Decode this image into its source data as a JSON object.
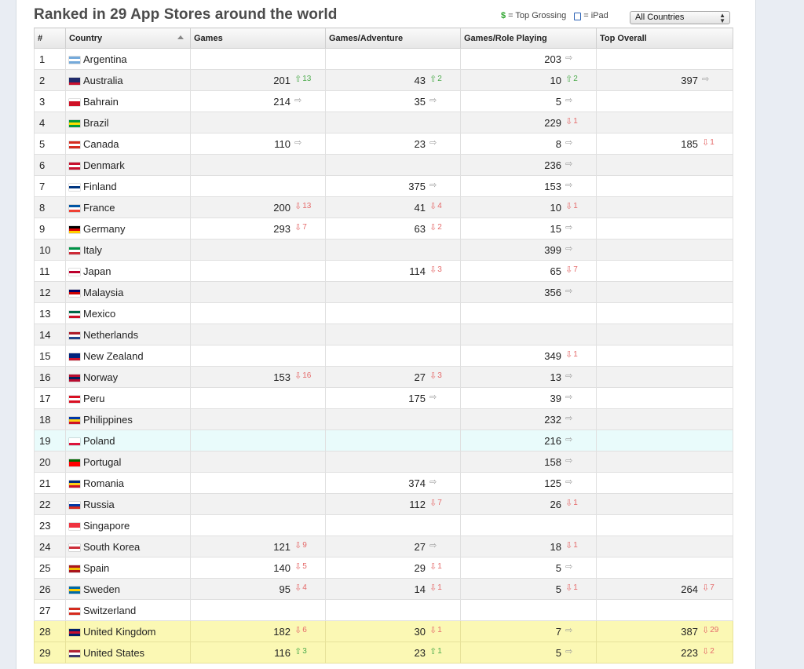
{
  "title": "Ranked in 29 App Stores around the world",
  "legend": {
    "grossing_symbol": "$",
    "grossing_label": "= Top Grossing",
    "ipad_label": "= iPad"
  },
  "filter": {
    "selected": "All Countries"
  },
  "columns": [
    "#",
    "Country",
    "Games",
    "Games/Adventure",
    "Games/Role Playing",
    "Top Overall"
  ],
  "colors": {
    "up": "#4cab4c",
    "down": "#e56b6b",
    "same": "#9a9a9a",
    "highlight_yellow": "#fbf8b4",
    "highlight_blue": "#e9fbfb"
  },
  "rows": [
    {
      "num": "1",
      "country": "Argentina",
      "flag": [
        "#75aadb",
        "#ffffff",
        "#75aadb"
      ],
      "ranks": [
        null,
        null,
        {
          "v": "203",
          "d": "same",
          "c": ""
        },
        null
      ]
    },
    {
      "num": "2",
      "country": "Australia",
      "flag": [
        "#1f2a6b",
        "#1f2a6b",
        "#c8102e"
      ],
      "ranks": [
        {
          "v": "201",
          "d": "up",
          "c": "13"
        },
        {
          "v": "43",
          "d": "up",
          "c": "2"
        },
        {
          "v": "10",
          "d": "up",
          "c": "2"
        },
        {
          "v": "397",
          "d": "same",
          "c": ""
        }
      ]
    },
    {
      "num": "3",
      "country": "Bahrain",
      "flag": [
        "#ffffff",
        "#ce1126",
        "#ce1126"
      ],
      "ranks": [
        {
          "v": "214",
          "d": "same",
          "c": ""
        },
        {
          "v": "35",
          "d": "same",
          "c": ""
        },
        {
          "v": "5",
          "d": "same",
          "c": ""
        },
        null
      ]
    },
    {
      "num": "4",
      "country": "Brazil",
      "flag": [
        "#009b3a",
        "#fedf00",
        "#009b3a"
      ],
      "ranks": [
        null,
        null,
        {
          "v": "229",
          "d": "down",
          "c": "1"
        },
        null
      ]
    },
    {
      "num": "5",
      "country": "Canada",
      "flag": [
        "#d52b1e",
        "#ffffff",
        "#d52b1e"
      ],
      "ranks": [
        {
          "v": "110",
          "d": "same",
          "c": ""
        },
        {
          "v": "23",
          "d": "same",
          "c": ""
        },
        {
          "v": "8",
          "d": "same",
          "c": ""
        },
        {
          "v": "185",
          "d": "down",
          "c": "1"
        }
      ]
    },
    {
      "num": "6",
      "country": "Denmark",
      "flag": [
        "#c8102e",
        "#ffffff",
        "#c8102e"
      ],
      "ranks": [
        null,
        null,
        {
          "v": "236",
          "d": "same",
          "c": ""
        },
        null
      ]
    },
    {
      "num": "7",
      "country": "Finland",
      "flag": [
        "#ffffff",
        "#003580",
        "#ffffff"
      ],
      "ranks": [
        null,
        {
          "v": "375",
          "d": "same",
          "c": ""
        },
        {
          "v": "153",
          "d": "same",
          "c": ""
        },
        null
      ]
    },
    {
      "num": "8",
      "country": "France",
      "flag": [
        "#0055a4",
        "#ffffff",
        "#ef4135"
      ],
      "ranks": [
        {
          "v": "200",
          "d": "down",
          "c": "13"
        },
        {
          "v": "41",
          "d": "down",
          "c": "4"
        },
        {
          "v": "10",
          "d": "down",
          "c": "1"
        },
        null
      ]
    },
    {
      "num": "9",
      "country": "Germany",
      "flag": [
        "#000000",
        "#dd0000",
        "#ffce00"
      ],
      "ranks": [
        {
          "v": "293",
          "d": "down",
          "c": "7"
        },
        {
          "v": "63",
          "d": "down",
          "c": "2"
        },
        {
          "v": "15",
          "d": "same",
          "c": ""
        },
        null
      ]
    },
    {
      "num": "10",
      "country": "Italy",
      "flag": [
        "#009246",
        "#ffffff",
        "#ce2b37"
      ],
      "ranks": [
        null,
        null,
        {
          "v": "399",
          "d": "same",
          "c": ""
        },
        null
      ]
    },
    {
      "num": "11",
      "country": "Japan",
      "flag": [
        "#ffffff",
        "#bc002d",
        "#ffffff"
      ],
      "ranks": [
        null,
        {
          "v": "114",
          "d": "down",
          "c": "3"
        },
        {
          "v": "65",
          "d": "down",
          "c": "7"
        },
        null
      ]
    },
    {
      "num": "12",
      "country": "Malaysia",
      "flag": [
        "#010066",
        "#cc0001",
        "#ffffff"
      ],
      "ranks": [
        null,
        null,
        {
          "v": "356",
          "d": "same",
          "c": ""
        },
        null
      ]
    },
    {
      "num": "13",
      "country": "Mexico",
      "flag": [
        "#006847",
        "#ffffff",
        "#ce1126"
      ],
      "ranks": [
        null,
        null,
        null,
        null
      ]
    },
    {
      "num": "14",
      "country": "Netherlands",
      "flag": [
        "#ae1c28",
        "#ffffff",
        "#21468b"
      ],
      "ranks": [
        null,
        null,
        null,
        null
      ]
    },
    {
      "num": "15",
      "country": "New Zealand",
      "flag": [
        "#00247d",
        "#00247d",
        "#cc142b"
      ],
      "ranks": [
        null,
        null,
        {
          "v": "349",
          "d": "down",
          "c": "1"
        },
        null
      ]
    },
    {
      "num": "16",
      "country": "Norway",
      "flag": [
        "#ba0c2f",
        "#00205b",
        "#ba0c2f"
      ],
      "ranks": [
        {
          "v": "153",
          "d": "down",
          "c": "16"
        },
        {
          "v": "27",
          "d": "down",
          "c": "3"
        },
        {
          "v": "13",
          "d": "same",
          "c": ""
        },
        null
      ]
    },
    {
      "num": "17",
      "country": "Peru",
      "flag": [
        "#d91023",
        "#ffffff",
        "#d91023"
      ],
      "ranks": [
        null,
        {
          "v": "175",
          "d": "same",
          "c": ""
        },
        {
          "v": "39",
          "d": "same",
          "c": ""
        },
        null
      ]
    },
    {
      "num": "18",
      "country": "Philippines",
      "flag": [
        "#0038a8",
        "#fcd116",
        "#ce1126"
      ],
      "ranks": [
        null,
        null,
        {
          "v": "232",
          "d": "same",
          "c": ""
        },
        null
      ]
    },
    {
      "num": "19",
      "country": "Poland",
      "flag": [
        "#ffffff",
        "#ffffff",
        "#dc143c"
      ],
      "ranks": [
        null,
        null,
        {
          "v": "216",
          "d": "same",
          "c": ""
        },
        null
      ]
    },
    {
      "num": "20",
      "country": "Portugal",
      "flag": [
        "#006600",
        "#ff0000",
        "#ff0000"
      ],
      "ranks": [
        null,
        null,
        {
          "v": "158",
          "d": "same",
          "c": ""
        },
        null
      ]
    },
    {
      "num": "21",
      "country": "Romania",
      "flag": [
        "#002b7f",
        "#fcd116",
        "#ce1126"
      ],
      "ranks": [
        null,
        {
          "v": "374",
          "d": "same",
          "c": ""
        },
        {
          "v": "125",
          "d": "same",
          "c": ""
        },
        null
      ]
    },
    {
      "num": "22",
      "country": "Russia",
      "flag": [
        "#ffffff",
        "#0039a6",
        "#d52b1e"
      ],
      "ranks": [
        null,
        {
          "v": "112",
          "d": "down",
          "c": "7"
        },
        {
          "v": "26",
          "d": "down",
          "c": "1"
        },
        null
      ]
    },
    {
      "num": "23",
      "country": "Singapore",
      "flag": [
        "#ef3340",
        "#ef3340",
        "#ffffff"
      ],
      "ranks": [
        null,
        null,
        null,
        null
      ]
    },
    {
      "num": "24",
      "country": "South Korea",
      "flag": [
        "#ffffff",
        "#cd2e3a",
        "#ffffff"
      ],
      "ranks": [
        {
          "v": "121",
          "d": "down",
          "c": "9"
        },
        {
          "v": "27",
          "d": "same",
          "c": ""
        },
        {
          "v": "18",
          "d": "down",
          "c": "1"
        },
        null
      ]
    },
    {
      "num": "25",
      "country": "Spain",
      "flag": [
        "#aa151b",
        "#f1bf00",
        "#aa151b"
      ],
      "ranks": [
        {
          "v": "140",
          "d": "down",
          "c": "5"
        },
        {
          "v": "29",
          "d": "down",
          "c": "1"
        },
        {
          "v": "5",
          "d": "same",
          "c": ""
        },
        null
      ]
    },
    {
      "num": "26",
      "country": "Sweden",
      "flag": [
        "#006aa7",
        "#fecc00",
        "#006aa7"
      ],
      "ranks": [
        {
          "v": "95",
          "d": "down",
          "c": "4"
        },
        {
          "v": "14",
          "d": "down",
          "c": "1"
        },
        {
          "v": "5",
          "d": "down",
          "c": "1"
        },
        {
          "v": "264",
          "d": "down",
          "c": "7"
        }
      ]
    },
    {
      "num": "27",
      "country": "Switzerland",
      "flag": [
        "#d52b1e",
        "#ffffff",
        "#d52b1e"
      ],
      "ranks": [
        null,
        null,
        null,
        null
      ]
    },
    {
      "num": "28",
      "country": "United Kingdom",
      "flag": [
        "#012169",
        "#c8102e",
        "#012169"
      ],
      "ranks": [
        {
          "v": "182",
          "d": "down",
          "c": "6"
        },
        {
          "v": "30",
          "d": "down",
          "c": "1"
        },
        {
          "v": "7",
          "d": "same",
          "c": ""
        },
        {
          "v": "387",
          "d": "down",
          "c": "29"
        }
      ]
    },
    {
      "num": "29",
      "country": "United States",
      "flag": [
        "#b22234",
        "#ffffff",
        "#3c3b6e"
      ],
      "ranks": [
        {
          "v": "116",
          "d": "up",
          "c": "3"
        },
        {
          "v": "23",
          "d": "up",
          "c": "1"
        },
        {
          "v": "5",
          "d": "same",
          "c": ""
        },
        {
          "v": "223",
          "d": "down",
          "c": "2"
        }
      ]
    }
  ]
}
